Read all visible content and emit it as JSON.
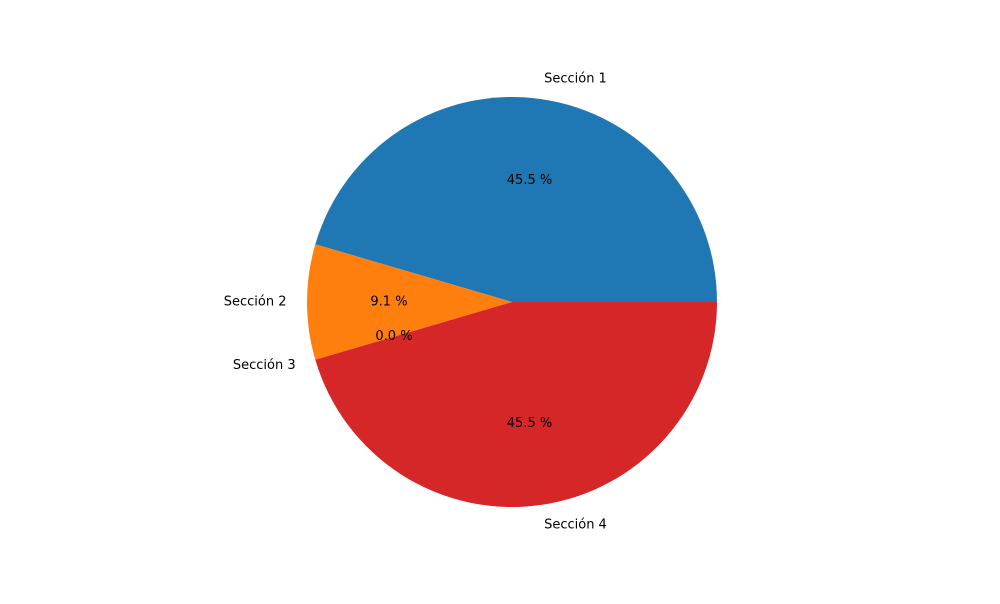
{
  "chart_data": {
    "type": "pie",
    "title": "",
    "start_angle_deg": 0,
    "direction": "counterclockwise",
    "legend": "none",
    "slices": [
      {
        "label": "Sección 1",
        "value": 45.5,
        "pct_label": "45.5 %",
        "color": "#1f77b4"
      },
      {
        "label": "Sección 2",
        "value": 9.1,
        "pct_label": "9.1 %",
        "color": "#ff7f0e"
      },
      {
        "label": "Sección 3",
        "value": 0.0,
        "pct_label": "0.0 %",
        "color": "#2ca02c"
      },
      {
        "label": "Sección 4",
        "value": 45.5,
        "pct_label": "45.5 %",
        "color": "#d62728"
      }
    ]
  }
}
